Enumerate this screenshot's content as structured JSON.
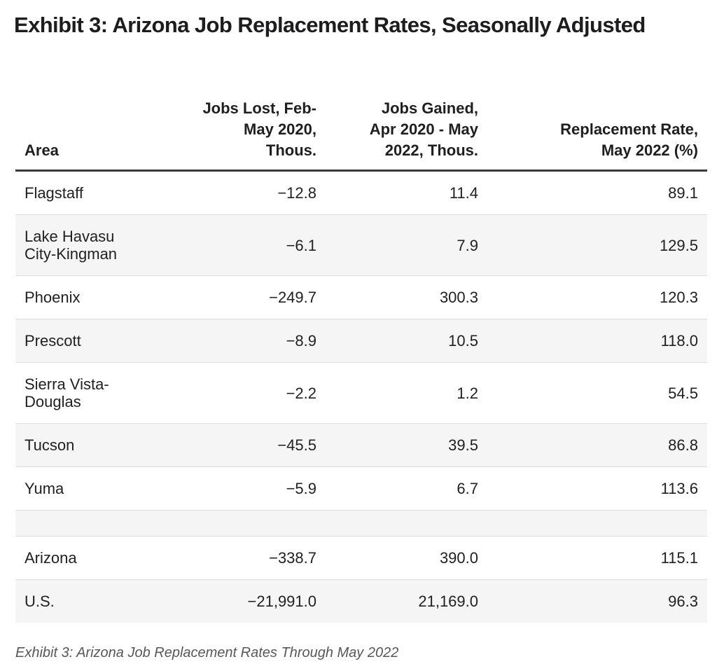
{
  "page": {
    "title": "Exhibit 3: Arizona Job Replacement Rates, Seasonally Adjusted",
    "caption": "Exhibit 3: Arizona Job Replacement Rates Through May 2022"
  },
  "table": {
    "columns": [
      {
        "id": "area",
        "label": "Area",
        "align": "left"
      },
      {
        "id": "jobs_lost",
        "label": "Jobs Lost, Feb-\nMay 2020,\nThous.",
        "align": "right"
      },
      {
        "id": "jobs_gained",
        "label": "Jobs Gained,\nApr 2020 - May\n2022, Thous.",
        "align": "right"
      },
      {
        "id": "replacement_rate",
        "label": "Replacement Rate,\nMay 2022 (%)",
        "align": "right"
      }
    ],
    "rows": [
      {
        "area": "Flagstaff",
        "jobs_lost": "−12.8",
        "jobs_gained": "11.4",
        "replacement_rate": "89.1",
        "striped": false
      },
      {
        "area": "Lake Havasu\nCity-Kingman",
        "jobs_lost": "−6.1",
        "jobs_gained": "7.9",
        "replacement_rate": "129.5",
        "striped": true
      },
      {
        "area": "Phoenix",
        "jobs_lost": "−249.7",
        "jobs_gained": "300.3",
        "replacement_rate": "120.3",
        "striped": false
      },
      {
        "area": "Prescott",
        "jobs_lost": "−8.9",
        "jobs_gained": "10.5",
        "replacement_rate": "118.0",
        "striped": true
      },
      {
        "area": "Sierra Vista-\nDouglas",
        "jobs_lost": "−2.2",
        "jobs_gained": "1.2",
        "replacement_rate": "54.5",
        "striped": false
      },
      {
        "area": "Tucson",
        "jobs_lost": "−45.5",
        "jobs_gained": "39.5",
        "replacement_rate": "86.8",
        "striped": true
      },
      {
        "area": "Yuma",
        "jobs_lost": "−5.9",
        "jobs_gained": "6.7",
        "replacement_rate": "113.6",
        "striped": false
      },
      {
        "spacer": true,
        "striped": true
      },
      {
        "area": "Arizona",
        "jobs_lost": "−338.7",
        "jobs_gained": "390.0",
        "replacement_rate": "115.1",
        "striped": false
      },
      {
        "area": "U.S.",
        "jobs_lost": "−21,991.0",
        "jobs_gained": "21,169.0",
        "replacement_rate": "96.3",
        "striped": true
      }
    ]
  },
  "chart_data": {
    "type": "table",
    "title": "Exhibit 3: Arizona Job Replacement Rates, Seasonally Adjusted",
    "caption": "Exhibit 3: Arizona Job Replacement Rates Through May 2022",
    "columns": [
      "Area",
      "Jobs Lost, Feb-May 2020, Thous.",
      "Jobs Gained, Apr 2020 - May 2022, Thous.",
      "Replacement Rate, May 2022 (%)"
    ],
    "rows": [
      [
        "Flagstaff",
        -12.8,
        11.4,
        89.1
      ],
      [
        "Lake Havasu City-Kingman",
        -6.1,
        7.9,
        129.5
      ],
      [
        "Phoenix",
        -249.7,
        300.3,
        120.3
      ],
      [
        "Prescott",
        -8.9,
        10.5,
        118.0
      ],
      [
        "Sierra Vista-Douglas",
        -2.2,
        1.2,
        54.5
      ],
      [
        "Tucson",
        -45.5,
        39.5,
        86.8
      ],
      [
        "Yuma",
        -5.9,
        6.7,
        113.6
      ],
      [
        "Arizona",
        -338.7,
        390.0,
        115.1
      ],
      [
        "U.S.",
        -21991.0,
        21169.0,
        96.3
      ]
    ],
    "layout": {
      "striped_rows": true,
      "stripe_color": "#f5f5f5",
      "separator_color": "#dcdcdc",
      "header_rule_color": "#3a3a3a",
      "numeric_columns_align": "right",
      "spacer_row_before": "Arizona"
    }
  }
}
